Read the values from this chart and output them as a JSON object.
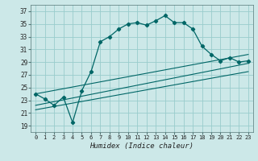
{
  "xlabel": "Humidex (Indice chaleur)",
  "bg_color": "#cce8e8",
  "grid_color": "#99cccc",
  "line_color": "#006666",
  "xlim": [
    -0.5,
    23.5
  ],
  "ylim": [
    18,
    38
  ],
  "yticks": [
    19,
    21,
    23,
    25,
    27,
    29,
    31,
    33,
    35,
    37
  ],
  "xticks": [
    0,
    1,
    2,
    3,
    4,
    5,
    6,
    7,
    8,
    9,
    10,
    11,
    12,
    13,
    14,
    15,
    16,
    17,
    18,
    19,
    20,
    21,
    22,
    23
  ],
  "curve_x": [
    0,
    1,
    2,
    3,
    4,
    5,
    6,
    7,
    8,
    9,
    10,
    11,
    12,
    13,
    14,
    15,
    16,
    17,
    18,
    19,
    20,
    21,
    22,
    23
  ],
  "curve_y": [
    24.0,
    23.2,
    22.2,
    23.5,
    19.5,
    24.5,
    27.5,
    32.2,
    33.0,
    34.2,
    35.0,
    35.2,
    34.8,
    35.5,
    36.3,
    35.2,
    35.2,
    34.2,
    31.5,
    30.2,
    29.2,
    29.7,
    29.0,
    29.2
  ],
  "line1_y0": 24.0,
  "line1_y1": 30.2,
  "line2_y0": 22.2,
  "line2_y1": 28.8,
  "line3_y0": 21.5,
  "line3_y1": 27.5
}
